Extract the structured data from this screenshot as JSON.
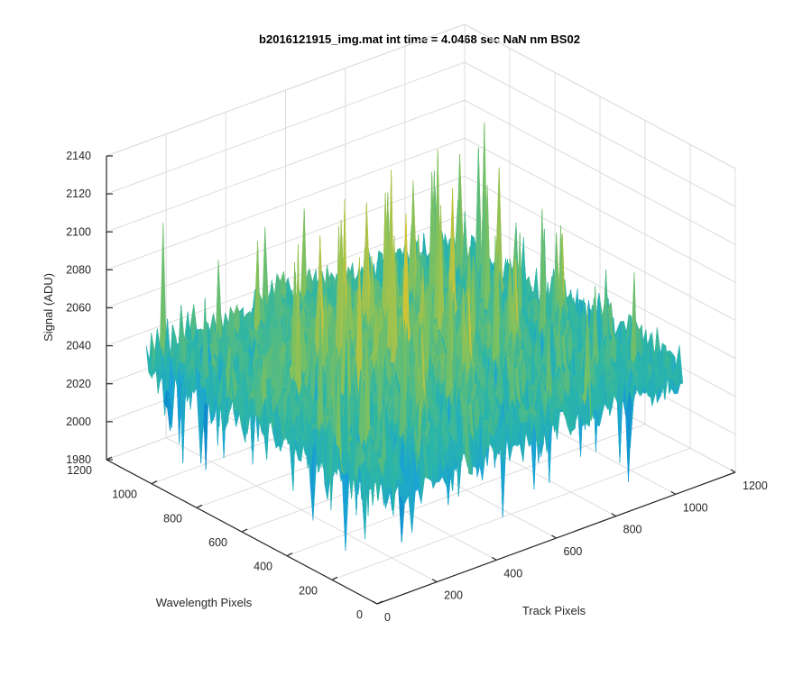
{
  "chart_data": {
    "type": "surface",
    "title": "b2016121915_img.mat int time = 4.0468 sec  NaN nm BS02",
    "xlabel": "Track Pixels",
    "ylabel": "Wavelength Pixels",
    "zlabel": "Signal (ADU)",
    "xlim": [
      0,
      1200
    ],
    "ylim": [
      0,
      1200
    ],
    "zlim": [
      1980,
      2140
    ],
    "xticks": [
      "0",
      "200",
      "400",
      "600",
      "800",
      "1000",
      "1200"
    ],
    "yticks": [
      "0",
      "200",
      "400",
      "600",
      "800",
      "1000",
      "1200"
    ],
    "zticks": [
      "1980",
      "2000",
      "2020",
      "2040",
      "2060",
      "2080",
      "2100",
      "2120",
      "2140"
    ],
    "surface_extent": {
      "x": [
        0,
        1024
      ],
      "y": [
        0,
        1024
      ]
    },
    "signal_mean": 2050,
    "signal_range": [
      1985,
      2135
    ],
    "grid": true,
    "colormap": [
      "#0072bd",
      "#1aa3d6",
      "#2bb5a8",
      "#79c062",
      "#c9c43a",
      "#f2c828"
    ]
  }
}
